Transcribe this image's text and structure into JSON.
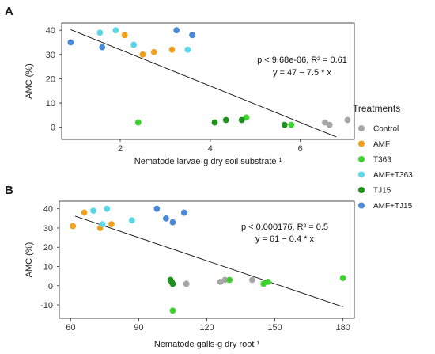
{
  "legend": {
    "title": "Treatments",
    "items": [
      {
        "label": "Control",
        "color": "#a6a6a6"
      },
      {
        "label": "AMF",
        "color": "#f0a01e"
      },
      {
        "label": "T363",
        "color": "#3fd12e"
      },
      {
        "label": "AMF+T363",
        "color": "#5ad6e8"
      },
      {
        "label": "TJ15",
        "color": "#1f8f1f"
      },
      {
        "label": "AMF+TJ15",
        "color": "#4a8ad6"
      }
    ]
  },
  "chart_data": [
    {
      "type": "scatter",
      "panel": "A",
      "xlabel": "Nematode larvae·g dry soil substrate ¹",
      "ylabel": "AMC (%)",
      "xlim": [
        0.7,
        7.2
      ],
      "ylim": [
        -5,
        43
      ],
      "xticks": [
        2,
        4,
        6
      ],
      "yticks": [
        0,
        10,
        20,
        30,
        40
      ],
      "annotation": [
        "p < 9.68e-06, R² = 0.61",
        "y = 47 − 7.5 * x"
      ],
      "regression": {
        "intercept": 47,
        "slope": -7.5,
        "x_range": [
          0.9,
          6.8
        ]
      },
      "series": [
        {
          "name": "Control",
          "points": [
            [
              6.55,
              2
            ],
            [
              6.65,
              1
            ],
            [
              7.05,
              3
            ]
          ]
        },
        {
          "name": "AMF",
          "points": [
            [
              2.1,
              38
            ],
            [
              2.5,
              30
            ],
            [
              2.75,
              31
            ],
            [
              3.15,
              32
            ]
          ]
        },
        {
          "name": "T363",
          "points": [
            [
              2.4,
              2
            ],
            [
              4.8,
              4
            ],
            [
              5.8,
              1
            ]
          ]
        },
        {
          "name": "AMF+T363",
          "points": [
            [
              1.55,
              39
            ],
            [
              1.9,
              40
            ],
            [
              2.3,
              34
            ],
            [
              3.5,
              32
            ]
          ]
        },
        {
          "name": "TJ15",
          "points": [
            [
              4.1,
              2
            ],
            [
              4.35,
              3
            ],
            [
              4.7,
              3
            ],
            [
              5.65,
              1
            ]
          ]
        },
        {
          "name": "AMF+TJ15",
          "points": [
            [
              0.9,
              35
            ],
            [
              1.6,
              33
            ],
            [
              3.25,
              40
            ],
            [
              3.6,
              38
            ]
          ]
        }
      ]
    },
    {
      "type": "scatter",
      "panel": "B",
      "xlabel": "Nematode galls·g dry root ¹",
      "ylabel": "AMC (%)",
      "xlim": [
        55,
        185
      ],
      "ylim": [
        -17,
        44
      ],
      "xticks": [
        60,
        90,
        120,
        150,
        180
      ],
      "yticks": [
        -10,
        0,
        10,
        20,
        30,
        40
      ],
      "annotation": [
        "p < 0.000176, R² = 0.5",
        "y = 61 − 0.4 * x"
      ],
      "regression": {
        "intercept": 61,
        "slope": -0.4,
        "x_range": [
          62,
          180
        ]
      },
      "series": [
        {
          "name": "Control",
          "points": [
            [
              111,
              1
            ],
            [
              126,
              2
            ],
            [
              128,
              3
            ],
            [
              140,
              3
            ]
          ]
        },
        {
          "name": "AMF",
          "points": [
            [
              61,
              31
            ],
            [
              66,
              38
            ],
            [
              73,
              30
            ],
            [
              78,
              32
            ]
          ]
        },
        {
          "name": "T363",
          "points": [
            [
              105,
              -13
            ],
            [
              130,
              3
            ],
            [
              145,
              1
            ],
            [
              147,
              2
            ],
            [
              180,
              4
            ]
          ]
        },
        {
          "name": "AMF+T363",
          "points": [
            [
              70,
              39
            ],
            [
              74,
              32
            ],
            [
              76,
              40
            ],
            [
              87,
              34
            ]
          ]
        },
        {
          "name": "TJ15",
          "points": [
            [
              104,
              3
            ],
            [
              104.5,
              2
            ],
            [
              105,
              1
            ]
          ]
        },
        {
          "name": "AMF+TJ15",
          "points": [
            [
              98,
              40
            ],
            [
              102,
              35
            ],
            [
              105,
              33
            ],
            [
              110,
              38
            ]
          ]
        }
      ]
    }
  ]
}
